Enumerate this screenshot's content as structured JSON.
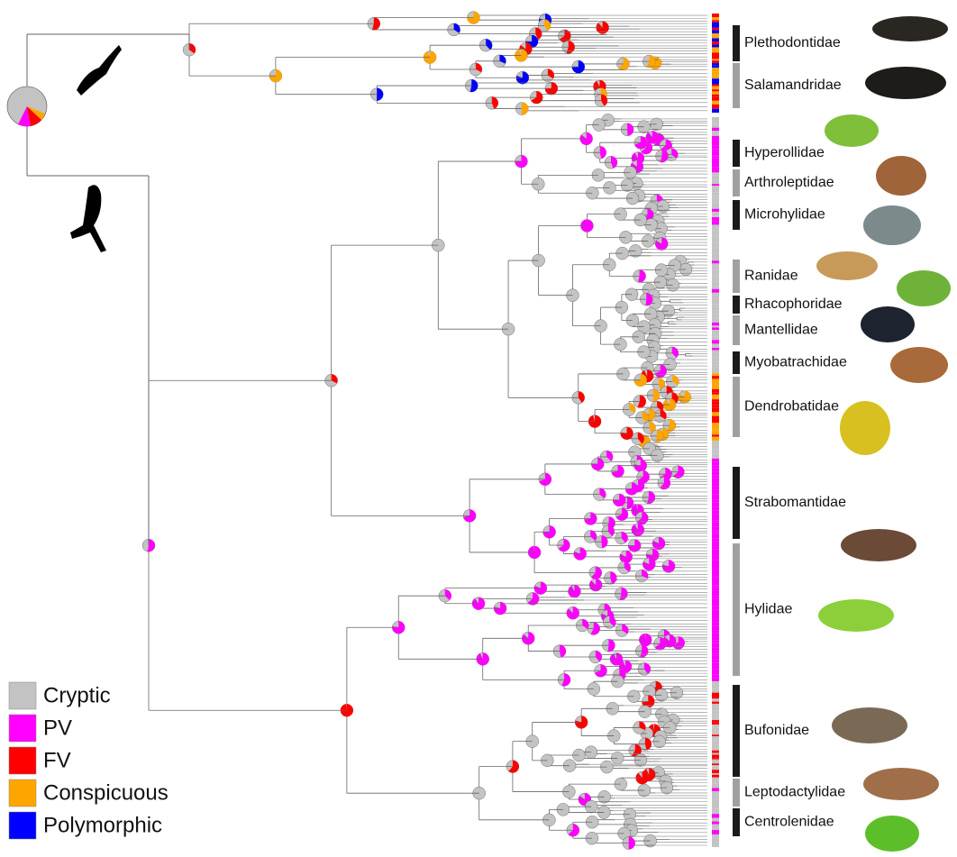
{
  "legend": {
    "items": [
      {
        "label": "Cryptic",
        "color": "#c3c3c3"
      },
      {
        "label": "PV",
        "color": "#ff00ff"
      },
      {
        "label": "FV",
        "color": "#ff0000"
      },
      {
        "label": "Conspicuous",
        "color": "#ffa500"
      },
      {
        "label": "Polymorphic",
        "color": "#0000ff"
      }
    ]
  },
  "clades": [
    {
      "label": "Plethodontidae"
    },
    {
      "label": "Salamandridae"
    },
    {
      "label": "Hyperollidae"
    },
    {
      "label": "Arthroleptidae"
    },
    {
      "label": "Microhylidae"
    },
    {
      "label": "Ranidae"
    },
    {
      "label": "Rhacophoridae"
    },
    {
      "label": "Mantellidae"
    },
    {
      "label": "Myobatrachidae"
    },
    {
      "label": "Dendrobatidae"
    },
    {
      "label": "Strabomantidae"
    },
    {
      "label": "Hylidae"
    },
    {
      "label": "Bufonidae"
    },
    {
      "label": "Leptodactylidae"
    },
    {
      "label": "Centrolenidae"
    }
  ]
}
